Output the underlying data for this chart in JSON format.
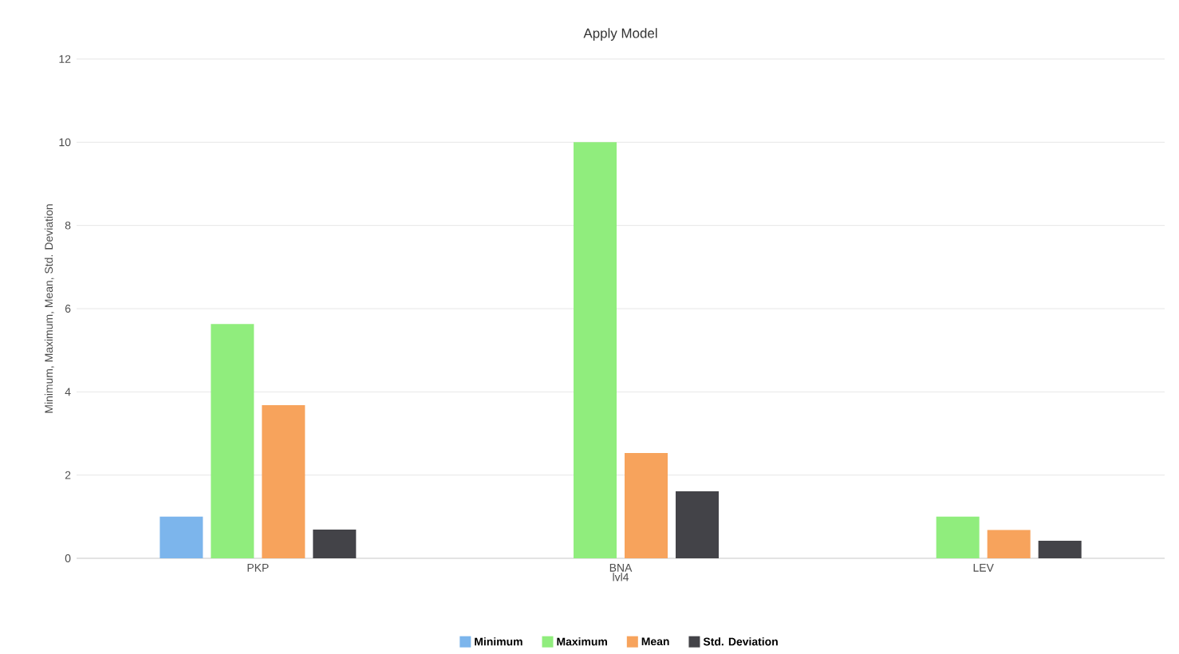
{
  "chart_data": {
    "type": "bar",
    "title": "Apply Model",
    "xlabel": "lvl4",
    "ylabel": "Minimum, Maximum, Mean, Std. Deviation",
    "categories": [
      "PKP",
      "BNA",
      "LEV"
    ],
    "series": [
      {
        "name": "Minimum",
        "color": "#7cb5ec",
        "values": [
          1.0,
          0,
          0
        ]
      },
      {
        "name": "Maximum",
        "color": "#90ed7d",
        "values": [
          5.63,
          10.0,
          1.0
        ]
      },
      {
        "name": "Mean",
        "color": "#f7a35c",
        "values": [
          3.68,
          2.53,
          0.68
        ]
      },
      {
        "name": "Std. Deviation",
        "color": "#434348",
        "values": [
          0.69,
          1.61,
          0.42
        ]
      }
    ],
    "ylim": [
      0,
      12
    ],
    "yticks": [
      0,
      2,
      4,
      6,
      8,
      10,
      12
    ],
    "grid": "y",
    "legend": "bottom"
  }
}
